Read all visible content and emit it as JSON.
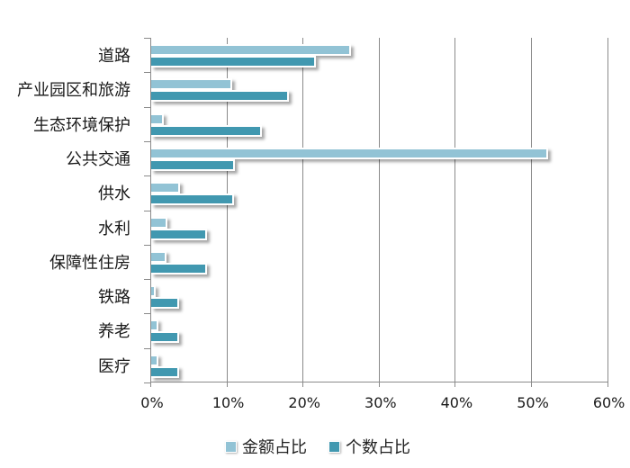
{
  "chart_data": {
    "type": "bar",
    "orientation": "horizontal",
    "title": "",
    "xlabel": "",
    "ylabel": "",
    "xlim": [
      0,
      60
    ],
    "x_ticks": [
      "0%",
      "10%",
      "20%",
      "30%",
      "40%",
      "50%",
      "60%"
    ],
    "grid": true,
    "legend_position": "bottom",
    "categories": [
      "道路",
      "产业园区和旅游",
      "生态环境保护",
      "公共交通",
      "供水",
      "水利",
      "保障性住房",
      "铁路",
      "养老",
      "医疗"
    ],
    "series": [
      {
        "name": "金额占比",
        "color": "#92c3d5",
        "values": [
          26.0,
          10.4,
          1.4,
          51.9,
          3.5,
          1.9,
          1.8,
          0.3,
          0.7,
          0.7
        ]
      },
      {
        "name": "个数占比",
        "color": "#4198b0",
        "values": [
          21.4,
          17.8,
          14.3,
          10.7,
          10.6,
          7.1,
          7.1,
          3.4,
          3.4,
          3.4
        ]
      }
    ]
  }
}
